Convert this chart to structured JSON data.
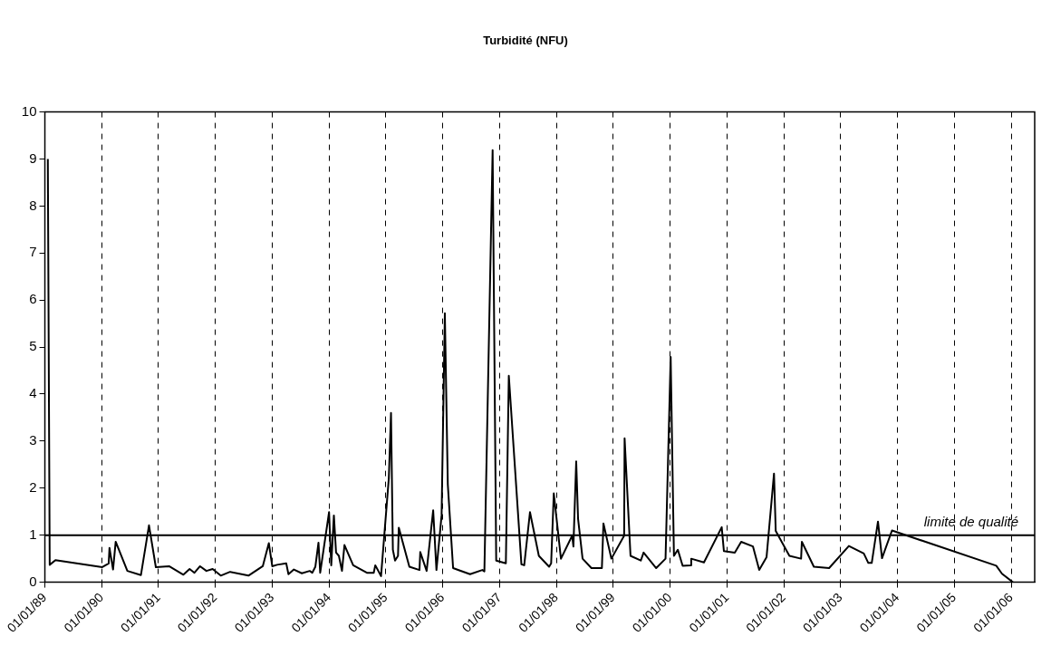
{
  "chart_data": {
    "type": "line",
    "title": "Turbidité (NFU)",
    "x": [
      "1989-01-20",
      "1989-02-01",
      "1989-03-10",
      "1990-01-05",
      "1990-02-15",
      "1990-02-20",
      "1990-03-15",
      "1990-04-01",
      "1990-06-15",
      "1990-09-10",
      "1990-11-01",
      "1990-12-15",
      "1991-03-10",
      "1991-06-10",
      "1991-07-20",
      "1991-08-20",
      "1991-09-25",
      "1991-11-05",
      "1991-12-15",
      "1992-02-05",
      "1992-04-05",
      "1992-08-01",
      "1992-11-01",
      "1992-12-10",
      "1993-01-01",
      "1993-02-01",
      "1993-04-01",
      "1993-04-15",
      "1993-05-20",
      "1993-07-10",
      "1993-08-30",
      "1993-09-15",
      "1993-10-05",
      "1993-10-25",
      "1993-11-05",
      "1994-01-01",
      "1994-01-15",
      "1994-02-01",
      "1994-02-15",
      "1994-03-05",
      "1994-03-25",
      "1994-04-10",
      "1994-06-05",
      "1994-09-01",
      "1994-10-15",
      "1994-10-25",
      "1994-12-01",
      "1995-01-20",
      "1995-02-03",
      "1995-02-15",
      "1995-03-01",
      "1995-03-20",
      "1995-03-25",
      "1995-06-01",
      "1995-08-05",
      "1995-08-10",
      "1995-09-20",
      "1995-11-01",
      "1995-11-22",
      "1995-12-25",
      "1996-01-15",
      "1996-02-03",
      "1996-03-08",
      "1996-06-25",
      "1996-09-12",
      "1996-09-25",
      "1996-11-17",
      "1996-12-10",
      "1997-02-10",
      "1997-03-01",
      "1997-05-21",
      "1997-06-08",
      "1997-07-15",
      "1997-09-10",
      "1997-11-15",
      "1997-11-28",
      "1997-12-15",
      "1998-01-30",
      "1998-04-12",
      "1998-04-20",
      "1998-05-08",
      "1998-05-20",
      "1998-06-18",
      "1998-08-14",
      "1998-10-20",
      "1998-10-30",
      "1998-12-20",
      "1999-03-12",
      "1999-03-15",
      "1999-04-22",
      "1999-06-27",
      "1999-07-15",
      "1999-10-04",
      "1999-12-03",
      "2000-01-05",
      "2000-01-26",
      "2000-02-20",
      "2000-03-22",
      "2000-05-12",
      "2000-05-16",
      "2000-08-06",
      "2000-11-28",
      "2000-12-12",
      "2001-02-20",
      "2001-04-02",
      "2001-06-17",
      "2001-07-27",
      "2001-09-12",
      "2001-10-30",
      "2001-11-10",
      "2002-02-06",
      "2002-04-22",
      "2002-04-27",
      "2002-07-13",
      "2002-10-19",
      "2003-02-23",
      "2003-05-30",
      "2003-06-28",
      "2003-07-20",
      "2003-08-29",
      "2003-09-24",
      "2003-11-27",
      "2005-09-27",
      "2005-11-03",
      "2006-01-12"
    ],
    "series": [
      {
        "color": "#000000",
        "values": [
          9.0,
          0.37,
          0.47,
          0.32,
          0.4,
          0.73,
          0.27,
          0.86,
          0.24,
          0.15,
          1.21,
          0.32,
          0.34,
          0.16,
          0.28,
          0.2,
          0.34,
          0.24,
          0.28,
          0.14,
          0.22,
          0.14,
          0.34,
          0.83,
          0.34,
          0.37,
          0.4,
          0.17,
          0.27,
          0.19,
          0.24,
          0.2,
          0.33,
          0.84,
          0.2,
          1.49,
          0.36,
          1.42,
          0.63,
          0.56,
          0.24,
          0.79,
          0.36,
          0.2,
          0.2,
          0.36,
          0.13,
          2.21,
          3.6,
          0.69,
          0.46,
          0.56,
          1.16,
          0.33,
          0.26,
          0.64,
          0.24,
          1.53,
          0.26,
          1.42,
          5.72,
          2.08,
          0.3,
          0.17,
          0.26,
          0.23,
          9.19,
          0.46,
          0.4,
          4.39,
          0.38,
          0.36,
          1.49,
          0.56,
          0.33,
          0.4,
          1.89,
          0.5,
          0.99,
          0.76,
          2.57,
          1.35,
          0.5,
          0.3,
          0.3,
          1.25,
          0.5,
          0.99,
          3.06,
          0.56,
          0.46,
          0.63,
          0.3,
          0.5,
          4.79,
          0.56,
          0.69,
          0.35,
          0.36,
          0.5,
          0.42,
          1.17,
          0.66,
          0.63,
          0.86,
          0.76,
          0.26,
          0.53,
          2.31,
          1.09,
          0.56,
          0.5,
          0.86,
          0.33,
          0.3,
          0.77,
          0.61,
          0.41,
          0.41,
          1.29,
          0.51,
          1.1,
          0.35,
          0.18,
          0
        ]
      }
    ],
    "xlim": [
      "1989-01-01",
      "2006-06-01"
    ],
    "xticks": [
      {
        "value": "1989-01-01",
        "label": "01/01/89"
      },
      {
        "value": "1990-01-01",
        "label": "01/01/90"
      },
      {
        "value": "1991-01-01",
        "label": "01/01/91"
      },
      {
        "value": "1992-01-01",
        "label": "01/01/92"
      },
      {
        "value": "1993-01-01",
        "label": "01/01/93"
      },
      {
        "value": "1994-01-01",
        "label": "01/01/94"
      },
      {
        "value": "1995-01-01",
        "label": "01/01/95"
      },
      {
        "value": "1996-01-01",
        "label": "01/01/96"
      },
      {
        "value": "1997-01-01",
        "label": "01/01/97"
      },
      {
        "value": "1998-01-01",
        "label": "01/01/98"
      },
      {
        "value": "1999-01-01",
        "label": "01/01/99"
      },
      {
        "value": "2000-01-01",
        "label": "01/01/00"
      },
      {
        "value": "2001-01-01",
        "label": "01/01/01"
      },
      {
        "value": "2002-01-01",
        "label": "01/01/02"
      },
      {
        "value": "2003-01-01",
        "label": "01/01/03"
      },
      {
        "value": "2004-01-01",
        "label": "01/01/04"
      },
      {
        "value": "2005-01-01",
        "label": "01/01/05"
      },
      {
        "value": "2006-01-01",
        "label": "01/01/06"
      }
    ],
    "ylim": [
      0,
      10
    ],
    "yticks": [
      0,
      1,
      2,
      3,
      4,
      5,
      6,
      7,
      8,
      9,
      10
    ],
    "grid": "x",
    "legend": false,
    "marker": "none",
    "line_style": "solid",
    "ref_lines": [
      {
        "axis": "y",
        "value": 1,
        "label": "limite de qualité",
        "color": "#000000"
      }
    ]
  }
}
